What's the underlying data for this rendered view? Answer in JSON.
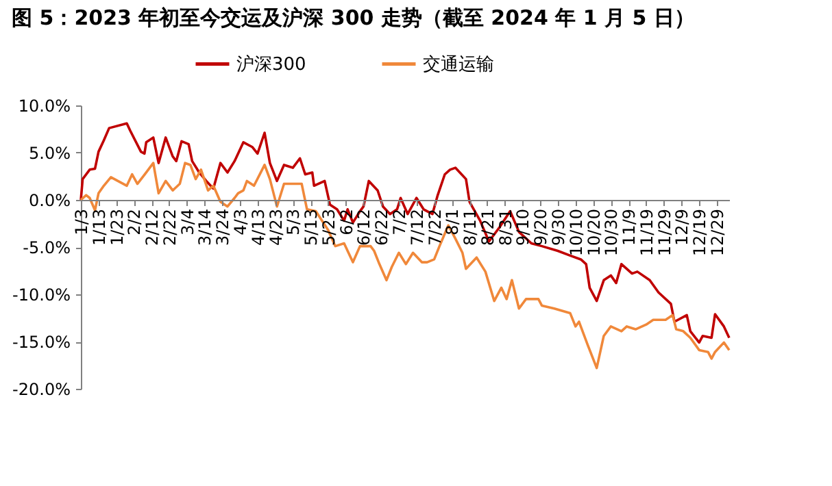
{
  "chart_data": {
    "type": "line",
    "title": "图 5：2023 年初至今交运及沪深 300 走势（截至 2024 年 1 月 5 日）",
    "xlim": [
      "2023-01-03",
      "2024-01-05"
    ],
    "xticks": [
      {
        "value": "2023-01-03",
        "label": "1/3"
      },
      {
        "value": "2023-01-13",
        "label": "1/13"
      },
      {
        "value": "2023-01-23",
        "label": "1/23"
      },
      {
        "value": "2023-02-02",
        "label": "2/2"
      },
      {
        "value": "2023-02-12",
        "label": "2/12"
      },
      {
        "value": "2023-02-22",
        "label": "2/22"
      },
      {
        "value": "2023-03-04",
        "label": "3/4"
      },
      {
        "value": "2023-03-14",
        "label": "3/14"
      },
      {
        "value": "2023-03-24",
        "label": "3/24"
      },
      {
        "value": "2023-04-03",
        "label": "4/3"
      },
      {
        "value": "2023-04-13",
        "label": "4/13"
      },
      {
        "value": "2023-04-23",
        "label": "4/23"
      },
      {
        "value": "2023-05-03",
        "label": "5/3"
      },
      {
        "value": "2023-05-13",
        "label": "5/13"
      },
      {
        "value": "2023-05-23",
        "label": "5/23"
      },
      {
        "value": "2023-06-02",
        "label": "6/2"
      },
      {
        "value": "2023-06-12",
        "label": "6/12"
      },
      {
        "value": "2023-06-22",
        "label": "6/22"
      },
      {
        "value": "2023-07-02",
        "label": "7/2"
      },
      {
        "value": "2023-07-12",
        "label": "7/12"
      },
      {
        "value": "2023-07-22",
        "label": "7/22"
      },
      {
        "value": "2023-08-01",
        "label": "8/1"
      },
      {
        "value": "2023-08-11",
        "label": "8/11"
      },
      {
        "value": "2023-08-21",
        "label": "8/21"
      },
      {
        "value": "2023-08-31",
        "label": "8/31"
      },
      {
        "value": "2023-09-10",
        "label": "9/10"
      },
      {
        "value": "2023-09-20",
        "label": "9/20"
      },
      {
        "value": "2023-09-30",
        "label": "9/30"
      },
      {
        "value": "2023-10-10",
        "label": "10/10"
      },
      {
        "value": "2023-10-20",
        "label": "10/20"
      },
      {
        "value": "2023-10-30",
        "label": "10/30"
      },
      {
        "value": "2023-11-09",
        "label": "11/9"
      },
      {
        "value": "2023-11-19",
        "label": "11/19"
      },
      {
        "value": "2023-11-29",
        "label": "11/29"
      },
      {
        "value": "2023-12-09",
        "label": "12/9"
      },
      {
        "value": "2023-12-19",
        "label": "12/19"
      },
      {
        "value": "2023-12-29",
        "label": "12/29"
      }
    ],
    "ylim": [
      -20,
      10
    ],
    "yticks": [
      {
        "value": -20,
        "label": "-20.0%"
      },
      {
        "value": -15,
        "label": "-15.0%"
      },
      {
        "value": -10,
        "label": "-10.0%"
      },
      {
        "value": -5,
        "label": "-5.0%"
      },
      {
        "value": 0,
        "label": "0.0%"
      },
      {
        "value": 5,
        "label": "5.0%"
      },
      {
        "value": 10,
        "label": "10.0%"
      }
    ],
    "grid": false,
    "legend": "top",
    "line_style": "solid",
    "marker": "none",
    "series": [
      {
        "name": "沪深300",
        "color": "#c00000",
        "x": [
          "2023-01-03",
          "2023-01-04",
          "2023-01-08",
          "2023-01-11",
          "2023-01-13",
          "2023-01-16",
          "2023-01-19",
          "2023-01-29",
          "2023-01-31",
          "2023-02-06",
          "2023-02-08",
          "2023-02-09",
          "2023-02-13",
          "2023-02-16",
          "2023-02-20",
          "2023-02-24",
          "2023-02-26",
          "2023-03-01",
          "2023-03-05",
          "2023-03-07",
          "2023-03-11",
          "2023-03-15",
          "2023-03-19",
          "2023-03-23",
          "2023-03-27",
          "2023-03-31",
          "2023-04-05",
          "2023-04-10",
          "2023-04-13",
          "2023-04-17",
          "2023-04-20",
          "2023-04-24",
          "2023-04-28",
          "2023-05-03",
          "2023-05-07",
          "2023-05-10",
          "2023-05-14",
          "2023-05-15",
          "2023-05-21",
          "2023-05-24",
          "2023-05-28",
          "2023-06-01",
          "2023-06-03",
          "2023-06-06",
          "2023-06-10",
          "2023-06-12",
          "2023-06-15",
          "2023-06-20",
          "2023-06-23",
          "2023-06-27",
          "2023-07-01",
          "2023-07-03",
          "2023-07-07",
          "2023-07-12",
          "2023-07-16",
          "2023-07-21",
          "2023-07-24",
          "2023-07-28",
          "2023-07-31",
          "2023-08-03",
          "2023-08-09",
          "2023-08-11",
          "2023-08-17",
          "2023-08-22",
          "2023-08-28",
          "2023-09-03",
          "2023-09-08",
          "2023-09-15",
          "2023-09-21",
          "2023-09-30",
          "2023-10-07",
          "2023-10-13",
          "2023-10-16",
          "2023-10-18",
          "2023-10-22",
          "2023-10-26",
          "2023-10-30",
          "2023-11-02",
          "2023-11-05",
          "2023-11-11",
          "2023-11-14",
          "2023-11-21",
          "2023-11-26",
          "2023-12-03",
          "2023-12-05",
          "2023-12-12",
          "2023-12-14",
          "2023-12-19",
          "2023-12-21",
          "2023-12-26",
          "2023-12-28",
          "2024-01-02",
          "2024-01-05"
        ],
        "values": [
          0,
          2.2,
          3.2,
          3.3,
          5.1,
          6.3,
          7.6,
          8.1,
          7.3,
          5.1,
          4.9,
          6.1,
          6.6,
          3.9,
          6.6,
          4.6,
          4.1,
          6.2,
          5.9,
          4.1,
          2.9,
          2.0,
          1.2,
          3.9,
          2.9,
          4.1,
          6.1,
          5.6,
          4.9,
          7.1,
          3.9,
          2.0,
          3.7,
          3.4,
          4.4,
          2.7,
          2.9,
          1.5,
          2.0,
          -0.5,
          -1.0,
          -2.2,
          -1.0,
          -2.4,
          -1.2,
          -0.7,
          2.0,
          1.0,
          -0.7,
          -1.5,
          -1.0,
          0.2,
          -1.5,
          0.2,
          -1.0,
          -1.5,
          0.5,
          2.7,
          3.2,
          3.4,
          2.2,
          -0.2,
          -2.2,
          -4.4,
          -2.9,
          -1.2,
          -3.4,
          -4.6,
          -4.9,
          -5.4,
          -5.9,
          -6.3,
          -6.8,
          -9.3,
          -10.7,
          -8.5,
          -8.0,
          -8.8,
          -6.8,
          -7.8,
          -7.6,
          -8.5,
          -9.8,
          -11.0,
          -12.9,
          -12.2,
          -13.9,
          -15.1,
          -14.4,
          -14.6,
          -12.1,
          -13.4,
          -14.6
        ]
      },
      {
        "name": "交通运输",
        "color": "#f0883a",
        "x": [
          "2023-01-03",
          "2023-01-06",
          "2023-01-08",
          "2023-01-11",
          "2023-01-13",
          "2023-01-16",
          "2023-01-20",
          "2023-01-29",
          "2023-02-01",
          "2023-02-04",
          "2023-02-09",
          "2023-02-13",
          "2023-02-16",
          "2023-02-20",
          "2023-02-24",
          "2023-02-28",
          "2023-03-03",
          "2023-03-06",
          "2023-03-09",
          "2023-03-12",
          "2023-03-16",
          "2023-03-19",
          "2023-03-23",
          "2023-03-27",
          "2023-03-31",
          "2023-04-02",
          "2023-04-05",
          "2023-04-07",
          "2023-04-11",
          "2023-04-17",
          "2023-04-20",
          "2023-04-24",
          "2023-04-28",
          "2023-05-08",
          "2023-05-11",
          "2023-05-16",
          "2023-05-23",
          "2023-05-27",
          "2023-06-01",
          "2023-06-06",
          "2023-06-10",
          "2023-06-16",
          "2023-06-18",
          "2023-06-21",
          "2023-06-25",
          "2023-06-28",
          "2023-07-02",
          "2023-07-06",
          "2023-07-10",
          "2023-07-15",
          "2023-07-18",
          "2023-07-22",
          "2023-07-25",
          "2023-07-30",
          "2023-08-03",
          "2023-08-07",
          "2023-08-09",
          "2023-08-15",
          "2023-08-20",
          "2023-08-25",
          "2023-08-29",
          "2023-09-01",
          "2023-09-04",
          "2023-09-08",
          "2023-09-12",
          "2023-09-19",
          "2023-09-21",
          "2023-09-28",
          "2023-10-07",
          "2023-10-10",
          "2023-10-12",
          "2023-10-17",
          "2023-10-22",
          "2023-10-26",
          "2023-10-30",
          "2023-11-05",
          "2023-11-08",
          "2023-11-13",
          "2023-11-19",
          "2023-11-23",
          "2023-11-30",
          "2023-12-04",
          "2023-12-06",
          "2023-12-10",
          "2023-12-14",
          "2023-12-19",
          "2023-12-24",
          "2023-12-26",
          "2023-12-28",
          "2024-01-02",
          "2024-01-05"
        ],
        "values": [
          0,
          0.5,
          0.2,
          -1.1,
          0.7,
          1.5,
          2.4,
          1.5,
          2.7,
          1.7,
          2.9,
          3.9,
          0.7,
          2.0,
          1.0,
          1.7,
          3.9,
          3.7,
          2.2,
          3.2,
          1.0,
          1.5,
          -0.2,
          -0.7,
          0.2,
          0.7,
          1.0,
          2.0,
          1.5,
          3.7,
          2.2,
          -0.7,
          1.7,
          1.7,
          -1.0,
          -1.2,
          -3.2,
          -4.9,
          -4.6,
          -6.6,
          -4.9,
          -4.9,
          -5.4,
          -6.8,
          -8.5,
          -7.1,
          -5.6,
          -6.8,
          -5.6,
          -6.6,
          -6.6,
          -6.3,
          -4.9,
          -2.7,
          -4.1,
          -5.6,
          -7.3,
          -6.1,
          -7.6,
          -10.7,
          -9.3,
          -10.5,
          -8.5,
          -11.5,
          -10.5,
          -10.5,
          -11.2,
          -11.5,
          -12.0,
          -13.4,
          -12.9,
          -15.4,
          -17.8,
          -14.4,
          -13.4,
          -13.9,
          -13.4,
          -13.7,
          -13.2,
          -12.7,
          -12.7,
          -12.2,
          -13.7,
          -13.9,
          -14.6,
          -15.9,
          -16.1,
          -16.8,
          -16.1,
          -15.1,
          -15.9
        ]
      }
    ]
  }
}
